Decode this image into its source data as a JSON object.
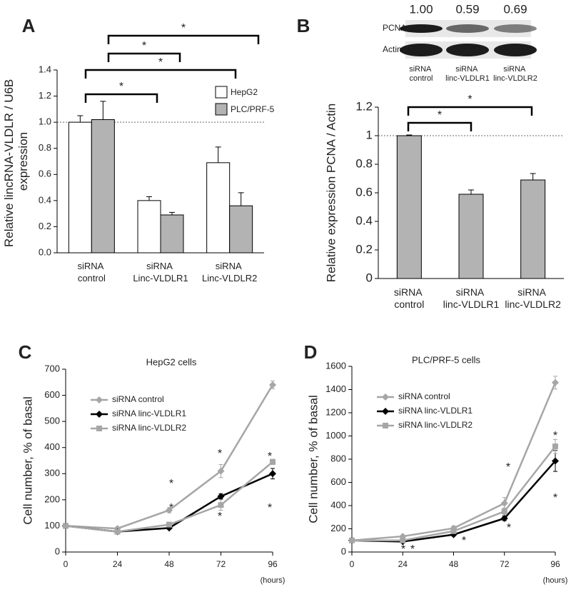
{
  "chart_data": [
    {
      "type": "bar",
      "panel": "A",
      "y_label": "Relative lincRNA-VLDLR / U6B expression",
      "categories": [
        "siRNA control",
        "siRNA Linc-VLDLR1",
        "siRNA Linc-VLDLR2"
      ],
      "series": [
        {
          "name": "HepG2",
          "color": "#ffffff",
          "values": [
            1.0,
            0.4,
            0.69
          ],
          "errors": [
            0.05,
            0.03,
            0.12
          ]
        },
        {
          "name": "PLC/PRF-5",
          "color": "#b3b3b3",
          "values": [
            1.02,
            0.29,
            0.36
          ],
          "errors": [
            0.14,
            0.02,
            0.1
          ]
        }
      ],
      "ylim": [
        0,
        1.4
      ],
      "yticks": [
        {
          "value": 0,
          "label": "0.0"
        },
        0.2,
        0.4,
        0.6,
        0.8,
        {
          "value": 1,
          "label": "1.0"
        },
        1.2,
        1.4
      ],
      "reference_line": 1,
      "legend": "upper right",
      "annotations": [
        "*",
        "*",
        "*",
        "*"
      ]
    },
    {
      "type": "bar",
      "panel": "B",
      "y_label": "Relative expression PCNA / Actin",
      "categories": [
        "siRNA control",
        "siRNA linc-VLDLR1",
        "siRNA linc-VLDLR2"
      ],
      "values": [
        1.0,
        0.59,
        0.69
      ],
      "errors": [
        0.005,
        0.03,
        0.045
      ],
      "color": "#b3b3b3",
      "ylim": [
        0,
        1.2
      ],
      "yticks": [
        0,
        0.2,
        0.4,
        0.6,
        0.8,
        1,
        1.2
      ],
      "reference_line": 1,
      "annotations": [
        "*",
        "*"
      ],
      "blot": {
        "rows": [
          "PCNA",
          "Actin"
        ],
        "quantification": [
          "1.00",
          "0.59",
          "0.69"
        ]
      }
    },
    {
      "type": "line",
      "panel": "C",
      "title": "HepG2 cells",
      "y_label": "Cell number, % of basal",
      "x_label": "(hours)",
      "x": [
        0,
        24,
        48,
        72,
        96
      ],
      "xlim": [
        0,
        96
      ],
      "xticks": [
        0,
        24,
        48,
        72,
        96
      ],
      "ylim": [
        0,
        700
      ],
      "yticks": [
        0,
        100,
        200,
        300,
        400,
        500,
        600,
        700
      ],
      "series": [
        {
          "name": "siRNA control",
          "color": "#a6a6a6",
          "marker": "diamond",
          "values": [
            100,
            90,
            160,
            310,
            640
          ],
          "errors": [
            5,
            5,
            10,
            25,
            15
          ]
        },
        {
          "name": "siRNA linc-VLDLR1",
          "color": "#000000",
          "marker": "diamond",
          "values": [
            100,
            78,
            92,
            213,
            300
          ],
          "errors": [
            5,
            5,
            5,
            10,
            20
          ]
        },
        {
          "name": "siRNA linc-VLDLR2",
          "color": "#a6a6a6",
          "marker": "square",
          "values": [
            100,
            78,
            105,
            180,
            345
          ],
          "errors": [
            5,
            5,
            5,
            20,
            10
          ]
        }
      ],
      "legend": "upper left",
      "annotations": [
        "*",
        "*",
        "*",
        "*",
        "*",
        "*"
      ]
    },
    {
      "type": "line",
      "panel": "D",
      "title": "PLC/PRF-5 cells",
      "y_label": "Cell number, % of basal",
      "x_label": "(hours)",
      "x": [
        0,
        24,
        48,
        72,
        96
      ],
      "xlim": [
        0,
        96
      ],
      "xticks": [
        0,
        24,
        48,
        72,
        96
      ],
      "ylim": [
        0,
        1600
      ],
      "yticks": [
        0,
        200,
        400,
        600,
        800,
        1000,
        1200,
        1400,
        1600
      ],
      "series": [
        {
          "name": "siRNA control",
          "color": "#a6a6a6",
          "marker": "diamond",
          "values": [
            100,
            135,
            205,
            420,
            1460
          ],
          "errors": [
            5,
            10,
            20,
            50,
            55
          ]
        },
        {
          "name": "siRNA linc-VLDLR1",
          "color": "#000000",
          "marker": "diamond",
          "values": [
            100,
            90,
            150,
            290,
            785
          ],
          "errors": [
            5,
            5,
            10,
            20,
            90
          ]
        },
        {
          "name": "siRNA linc-VLDLR2",
          "color": "#a6a6a6",
          "marker": "square",
          "values": [
            100,
            100,
            180,
            350,
            910
          ],
          "errors": [
            5,
            5,
            15,
            30,
            60
          ]
        }
      ],
      "legend": "upper left",
      "annotations": [
        "*",
        "*",
        "*",
        "*",
        "*",
        "*",
        "*"
      ]
    }
  ]
}
